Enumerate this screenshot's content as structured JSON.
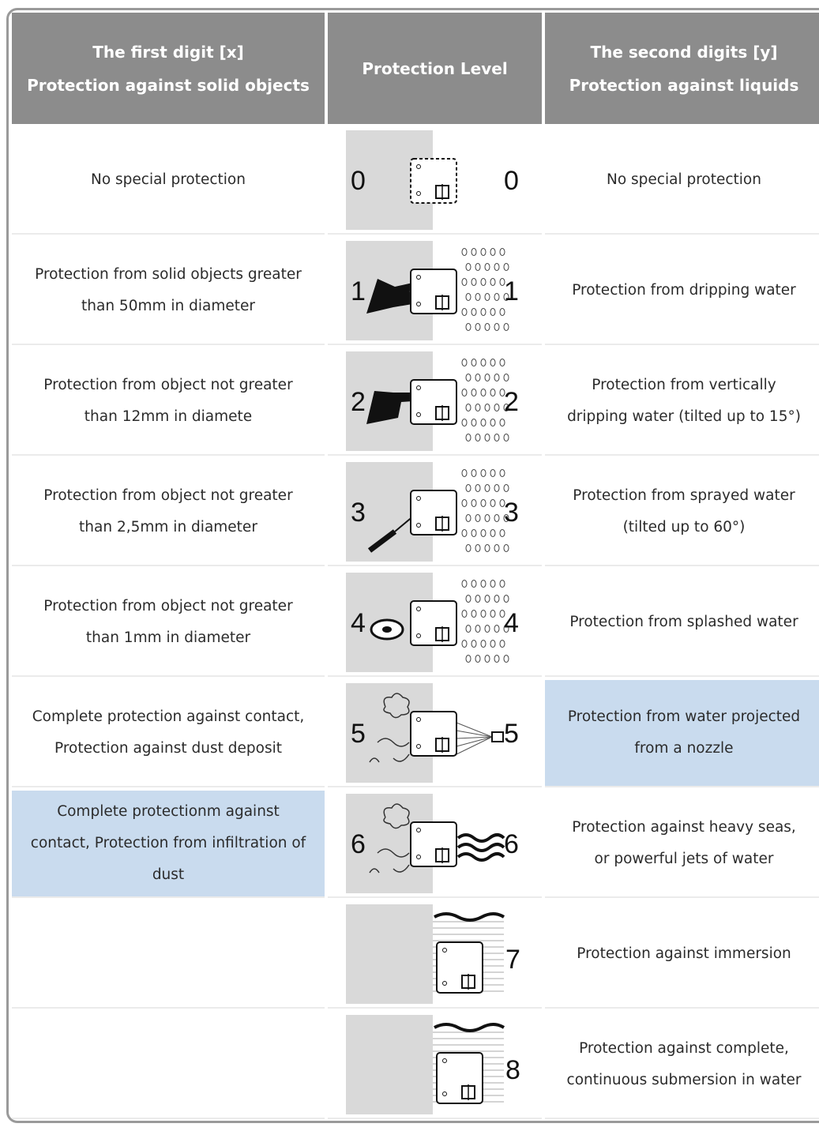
{
  "header": [
    [
      "The first digit [x]",
      "Protection against solid objects"
    ],
    [
      "Protection Level"
    ],
    [
      "The second digits [y]",
      "Protection against liquids"
    ]
  ],
  "rows": [
    {
      "solid": "No special protection",
      "level_left": 0,
      "level_right": 0,
      "liquids": "No special protection"
    },
    {
      "solid": "Protection from solid objects greater than 50mm in diameter",
      "level_left": 1,
      "level_right": 1,
      "liquids": "Protection from dripping water"
    },
    {
      "solid": "Protection from object not greater than 12mm in diamete",
      "level_left": 2,
      "level_right": 2,
      "liquids": "Protection from vertically dripping water (tilted up to 15°)"
    },
    {
      "solid": "Protection from object not greater than 2,5mm in diameter",
      "level_left": 3,
      "level_right": 3,
      "liquids": "Protection from sprayed water (tilted up to 60°)"
    },
    {
      "solid": "Protection from object not greater than 1mm in diameter",
      "level_left": 4,
      "level_right": 4,
      "liquids": "Protection from splashed water"
    },
    {
      "solid": "Complete protection against contact, Protection against dust deposit",
      "level_left": 5,
      "level_right": 5,
      "liquids": "Protection from water projected from a nozzle"
    },
    {
      "solid": "Complete protectionm against contact, Protection from infiltration of dust",
      "level_left": 6,
      "level_right": 6,
      "liquids": "Protection against heavy seas, or powerful jets of water"
    },
    {
      "level_right": 7,
      "liquids": "Protection against immersion"
    },
    {
      "level_right": 8,
      "liquids": "Protection against complete, continuous submersion in water"
    }
  ]
}
